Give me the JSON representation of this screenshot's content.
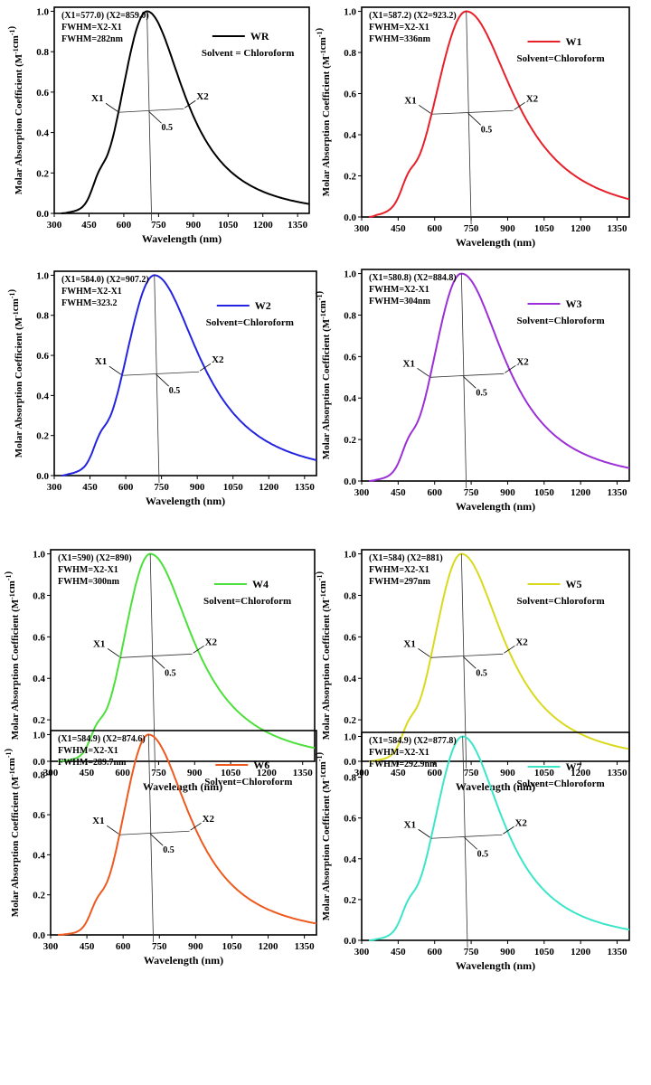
{
  "figure": {
    "panel_count": "8",
    "x_label": "Wavelength (nm)",
    "y_label_main": "Molar Absorption Coefficient (M",
    "y_label_sup1": "-1",
    "y_label_cm": "cm",
    "y_label_sup2": "-1",
    "y_label_close": ")",
    "x_ticks": [
      "300",
      "450",
      "600",
      "750",
      "900",
      "1050",
      "1200",
      "1350"
    ],
    "y_ticks": [
      "0.0",
      "0.2",
      "0.4",
      "0.6",
      "0.8",
      "1.0"
    ],
    "marker_x1": "X1",
    "marker_x2": "X2",
    "marker_half": "0.5",
    "fwhm_formula": "FWHM=X2-X1"
  },
  "chart_data": [
    {
      "type": "line",
      "legend": "WR",
      "solvent": "Solvent = Chloroform",
      "color": "#000000",
      "info1": "(X1=577.0) (X2=859.0)",
      "info3": "FWHM=282nm",
      "x1": 577.0,
      "x2": 859.0,
      "peak": 700,
      "fwhm": 282,
      "xlim": [
        300,
        1400
      ],
      "ylim": [
        0,
        1.02
      ],
      "xlabel": "Wavelength (nm)",
      "ylabel": "Molar Absorption Coefficient (M-1cm-1)"
    },
    {
      "type": "line",
      "legend": "W1",
      "solvent": "Solvent=Chloroform",
      "color": "#e8202a",
      "info1": "(X1=587.2) (X2=923.2)",
      "info3": "FWHM=336nm",
      "x1": 587.2,
      "x2": 923.2,
      "peak": 730,
      "fwhm": 336,
      "xlim": [
        300,
        1400
      ],
      "ylim": [
        0,
        1.02
      ],
      "xlabel": "Wavelength (nm)",
      "ylabel": "Molar Absorption Coefficient (M-1cm-1)"
    },
    {
      "type": "line",
      "legend": "W2",
      "solvent": "Solvent=Chloroform",
      "color": "#2424e0",
      "info1": "(X1=584.0) (X2=907.2)",
      "info3": "FWHM=323.2",
      "x1": 584.0,
      "x2": 907.2,
      "peak": 720,
      "fwhm": 323.2,
      "xlim": [
        300,
        1400
      ],
      "ylim": [
        0,
        1.02
      ],
      "xlabel": "Wavelength (nm)",
      "ylabel": "Molar Absorption Coefficient (M-1cm-1)"
    },
    {
      "type": "line",
      "legend": "W3",
      "solvent": "Solvent=Chloroform",
      "color": "#9b30d6",
      "info1": "(X1=580.8) (X2=884.8)",
      "info3": "FWHM=304nm",
      "x1": 580.8,
      "x2": 884.8,
      "peak": 710,
      "fwhm": 304,
      "xlim": [
        300,
        1400
      ],
      "ylim": [
        0,
        1.02
      ],
      "xlabel": "Wavelength (nm)",
      "ylabel": "Molar Absorption Coefficient (M-1cm-1)"
    },
    {
      "type": "line",
      "legend": "W4",
      "solvent": "Solvent=Chloroform",
      "color": "#4ce03a",
      "info1": "(X1=590) (X2=890)",
      "info3": "FWHM=300nm",
      "x1": 590,
      "x2": 890,
      "peak": 715,
      "fwhm": 300,
      "xlim": [
        300,
        1400
      ],
      "ylim": [
        0,
        1.02
      ],
      "xlabel": "Wavelength (nm)",
      "ylabel": "Molar Absorption Coefficient (M-1cm-1)"
    },
    {
      "type": "line",
      "legend": "W5",
      "solvent": "Solvent=Chloroform",
      "color": "#d9d91e",
      "info1": "(X1=584) (X2=881)",
      "info3": "FWHM=297nm",
      "x1": 584,
      "x2": 881,
      "peak": 710,
      "fwhm": 297,
      "xlim": [
        300,
        1400
      ],
      "ylim": [
        0,
        1.02
      ],
      "xlabel": "Wavelength (nm)",
      "ylabel": "Molar Absorption Coefficient (M-1cm-1)"
    },
    {
      "type": "line",
      "legend": "W6",
      "solvent": "Solvent=Chloroform",
      "color": "#ee5a1e",
      "info1": "(X1=584.9) (X2=874.6)",
      "info3": "FWHM=289.7nm",
      "x1": 584.9,
      "x2": 874.6,
      "peak": 705,
      "fwhm": 289.7,
      "xlim": [
        300,
        1400
      ],
      "ylim": [
        0,
        1.02
      ],
      "xlabel": "Wavelength (nm)",
      "ylabel": "Molar Absorption Coefficient (M-1cm-1)"
    },
    {
      "type": "line",
      "legend": "W7",
      "solvent": "Solvent=Chloroform",
      "color": "#3be6c8",
      "info1": "(X1=584.9) (X2=877.8)",
      "info3": "FWHM=292.9nm",
      "x1": 584.9,
      "x2": 877.8,
      "peak": 715,
      "fwhm": 292.9,
      "xlim": [
        300,
        1400
      ],
      "ylim": [
        0,
        1.02
      ],
      "xlabel": "Wavelength (nm)",
      "ylabel": "Molar Absorption Coefficient (M-1cm-1)"
    }
  ]
}
